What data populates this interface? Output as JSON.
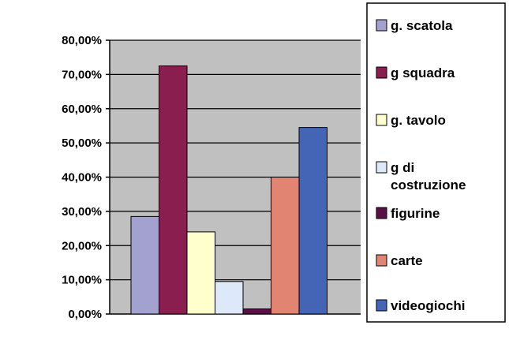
{
  "chart_data": {
    "type": "bar",
    "title": "",
    "xlabel": "",
    "ylabel": "",
    "ylim": [
      0,
      80
    ],
    "y_tick_values": [
      0,
      10,
      20,
      30,
      40,
      50,
      60,
      70,
      80
    ],
    "y_tick_labels": [
      "0,00%",
      "10,00%",
      "20,00%",
      "30,00%",
      "40,00%",
      "50,00%",
      "60,00%",
      "70,00%",
      "80,00%"
    ],
    "grid": true,
    "plot_background": "#c0c0c0",
    "legend_position": "right",
    "series": [
      {
        "name": "g. scatola",
        "values": [
          28.5
        ],
        "color": "#a3a1d0"
      },
      {
        "name": "g squadra",
        "values": [
          72.5
        ],
        "color": "#8a1e4e"
      },
      {
        "name": "g. tavolo",
        "values": [
          24.0
        ],
        "color": "#ffffce"
      },
      {
        "name": "g di costruzione",
        "legend_lines": [
          "g di",
          "costruzione"
        ],
        "values": [
          9.5
        ],
        "color": "#dde9f8"
      },
      {
        "name": "figurine",
        "values": [
          1.5
        ],
        "color": "#5a0f47"
      },
      {
        "name": "carte",
        "values": [
          40.0
        ],
        "color": "#e28472"
      },
      {
        "name": "videogiochi",
        "values": [
          54.5
        ],
        "color": "#4464b5"
      }
    ]
  }
}
